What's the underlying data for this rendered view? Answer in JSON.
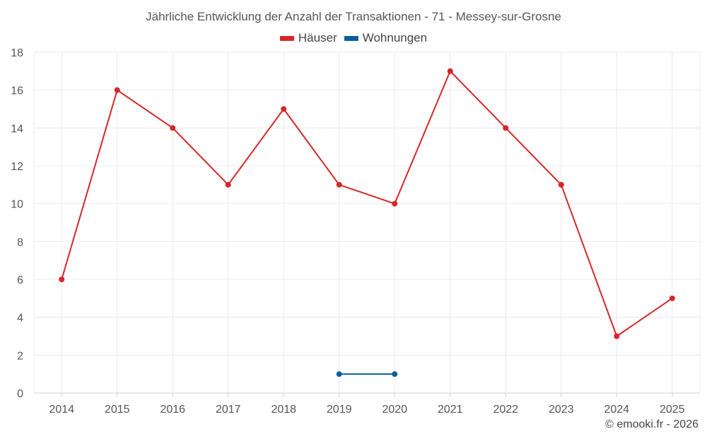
{
  "chart_data": {
    "type": "line",
    "title": "Jährliche Entwicklung der Anzahl der Transaktionen - 71 - Messey-sur-Grosne",
    "categories": [
      "2014",
      "2015",
      "2016",
      "2017",
      "2018",
      "2019",
      "2020",
      "2021",
      "2022",
      "2023",
      "2024",
      "2025"
    ],
    "ylim": [
      0,
      18
    ],
    "yticks": [
      0,
      2,
      4,
      6,
      8,
      10,
      12,
      14,
      16,
      18
    ],
    "grid": true,
    "legend_position": "top-center",
    "xlabel": "",
    "ylabel": "",
    "series": [
      {
        "name": "Häuser",
        "color": "#d62728",
        "values": [
          6,
          16,
          14,
          11,
          15,
          11,
          10,
          17,
          14,
          11,
          3,
          5
        ]
      },
      {
        "name": "Wohnungen",
        "color": "#0a5f9e",
        "values": [
          null,
          null,
          null,
          null,
          null,
          1,
          1,
          null,
          null,
          null,
          null,
          null
        ]
      }
    ]
  },
  "credit": "© emooki.fr - 2026"
}
